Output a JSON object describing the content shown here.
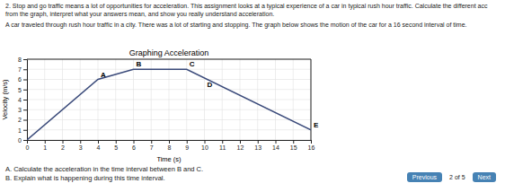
{
  "chart_data": {
    "type": "line",
    "title": "Graphing Acceleration",
    "x_label": "Time (s)",
    "y_label": "Velocity (m/s)",
    "x": [
      0,
      4,
      6,
      9,
      16
    ],
    "series": [
      {
        "values": [
          0,
          6,
          7,
          7,
          1
        ],
        "color": "#3a4a7a"
      }
    ],
    "xlim": [
      0,
      16
    ],
    "ylim": [
      0,
      8
    ],
    "xticks": [
      0,
      1,
      2,
      3,
      4,
      5,
      6,
      7,
      8,
      9,
      10,
      11,
      12,
      13,
      14,
      15,
      16
    ],
    "yticks": [
      0,
      1,
      2,
      3,
      4,
      5,
      6,
      7,
      8
    ],
    "grid": true,
    "annotations": [
      {
        "text": "A",
        "x": 4,
        "y": 6
      },
      {
        "text": "B",
        "x": 6,
        "y": 7
      },
      {
        "text": "C",
        "x": 9,
        "y": 7
      },
      {
        "text": "D",
        "x": 10,
        "y": 5
      },
      {
        "text": "E",
        "x": 16,
        "y": 1
      }
    ]
  },
  "page": {
    "paragraphs": [
      "2. Stop and go traffic means a lot of opportunities for acceleration. This assignment looks at a typical experience of a car in typical rush hour traffic. Calculate the different acc",
      "from the graph, interpret what your answers mean, and show you really understand acceleration.",
      "A car traveled through rush hour traffic in a city. There was a lot of starting and stopping. The graph below shows the motion of the car for a 16 second interval of time."
    ],
    "questions": [
      "A. Calculate the acceleration in the time interval between B and C.",
      "B. Explain what is happening during this time interval."
    ],
    "buttons": [
      "Previous",
      "Next"
    ],
    "page_label": "2 of 5"
  }
}
